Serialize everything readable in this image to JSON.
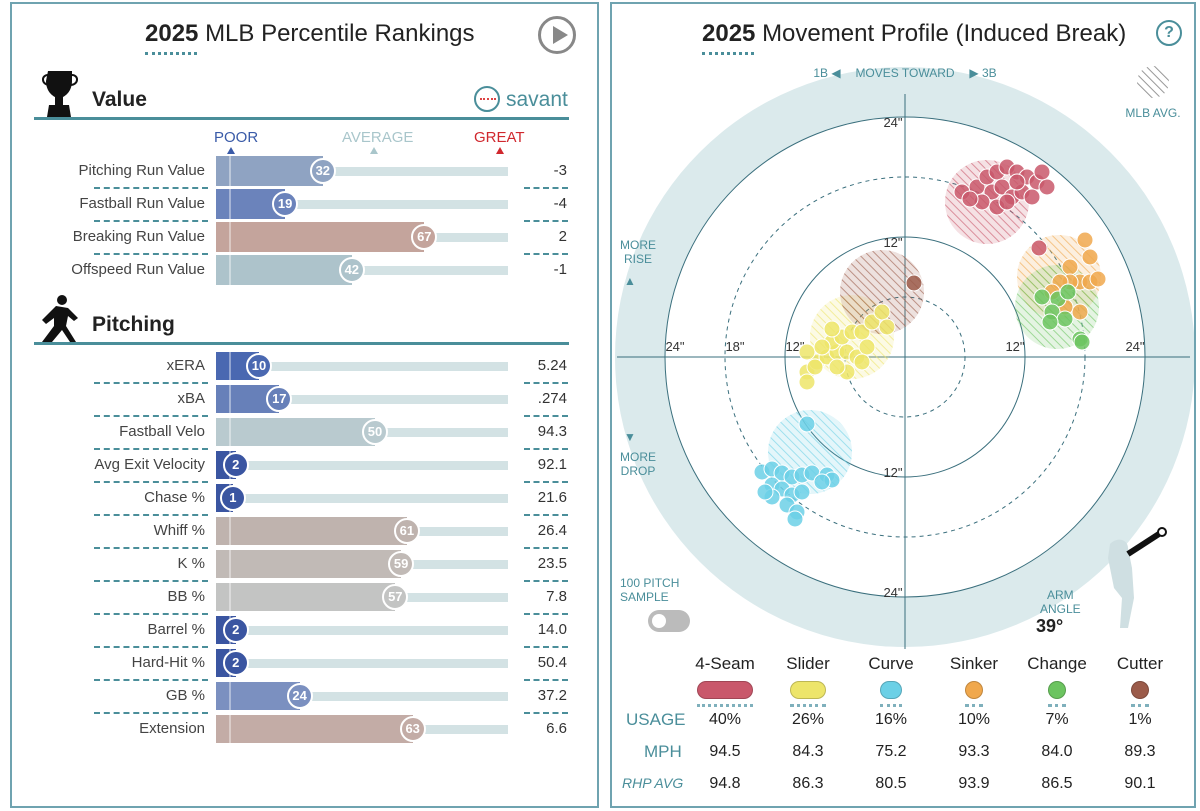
{
  "left": {
    "title_year": "2025",
    "title_rest": "MLB Percentile Rankings",
    "play_icon": "play-circle-icon",
    "value_section": {
      "icon": "trophy-icon",
      "label": "Value"
    },
    "brand": {
      "icon": "baseball-icon",
      "label": "savant"
    },
    "scale": {
      "poor": "POOR",
      "average": "AVERAGE",
      "great": "GREAT",
      "poor_color": "#3a5ba8",
      "average_color": "#a9c6cb",
      "great_color": "#d0282e"
    },
    "value_rows": [
      {
        "label": "Pitching Run Value",
        "pct": 32,
        "value": "-3",
        "color": "#8fa3c2"
      },
      {
        "label": "Fastball Run Value",
        "pct": 19,
        "value": "-4",
        "color": "#6b83bb"
      },
      {
        "label": "Breaking Run Value",
        "pct": 67,
        "value": "2",
        "color": "#c4a49c"
      },
      {
        "label": "Offspeed Run Value",
        "pct": 42,
        "value": "-1",
        "color": "#adc3cb"
      }
    ],
    "pitching_section": {
      "icon": "pitcher-icon",
      "label": "Pitching"
    },
    "pitching_rows": [
      {
        "label": "xERA",
        "pct": 10,
        "value": "5.24",
        "color": "#4a68b1"
      },
      {
        "label": "xBA",
        "pct": 17,
        "value": ".274",
        "color": "#6780b9"
      },
      {
        "label": "Fastball Velo",
        "pct": 50,
        "value": "94.3",
        "color": "#b9cacf"
      },
      {
        "label": "Avg Exit Velocity",
        "pct": 2,
        "value": "92.1",
        "color": "#3a55a1"
      },
      {
        "label": "Chase %",
        "pct": 1,
        "value": "21.6",
        "color": "#3a55a1"
      },
      {
        "label": "Whiff %",
        "pct": 61,
        "value": "26.4",
        "color": "#bfb3ae"
      },
      {
        "label": "K %",
        "pct": 59,
        "value": "23.5",
        "color": "#c1bab6"
      },
      {
        "label": "BB %",
        "pct": 57,
        "value": "7.8",
        "color": "#c3c4c3"
      },
      {
        "label": "Barrel %",
        "pct": 2,
        "value": "14.0",
        "color": "#3a55a1"
      },
      {
        "label": "Hard-Hit %",
        "pct": 2,
        "value": "50.4",
        "color": "#3a55a1"
      },
      {
        "label": "GB %",
        "pct": 24,
        "value": "37.2",
        "color": "#7b90c0"
      },
      {
        "label": "Extension",
        "pct": 63,
        "value": "6.6",
        "color": "#c3aca6"
      }
    ]
  },
  "right": {
    "title_year": "2025",
    "title_rest": "Movement Profile (Induced Break)",
    "help_icon": "question-circle-icon",
    "direction": {
      "left": "1B",
      "mid": "MOVES TOWARD",
      "right": "3B"
    },
    "mlb_avg_label": "MLB AVG.",
    "more_rise": [
      "MORE",
      "RISE"
    ],
    "more_drop": [
      "MORE",
      "DROP"
    ],
    "sample_label": [
      "100 PITCH",
      "SAMPLE"
    ],
    "sample_toggle_on": false,
    "arm_angle_label": [
      "ARM",
      "ANGLE"
    ],
    "arm_angle": "39°",
    "row_labels": {
      "usage": "USAGE",
      "mph": "MPH",
      "rhp": "RHP AVG"
    },
    "pitches": [
      {
        "name": "4-Seam",
        "color": "#c9586b",
        "usage": "40%",
        "mph": "94.5",
        "rhp": "94.8"
      },
      {
        "name": "Slider",
        "color": "#ede56a",
        "usage": "26%",
        "mph": "84.3",
        "rhp": "86.3"
      },
      {
        "name": "Curve",
        "color": "#6cd0e6",
        "usage": "16%",
        "mph": "75.2",
        "rhp": "80.5"
      },
      {
        "name": "Sinker",
        "color": "#f0a84d",
        "usage": "10%",
        "mph": "93.3",
        "rhp": "93.9"
      },
      {
        "name": "Change",
        "color": "#6cc460",
        "usage": "7%",
        "mph": "84.0",
        "rhp": "86.5"
      },
      {
        "name": "Cutter",
        "color": "#9b5b4a",
        "usage": "1%",
        "mph": "89.3",
        "rhp": "90.1"
      }
    ]
  },
  "chart_data": {
    "type": "scatter",
    "x_unit": "inches horizontal break",
    "y_unit": "inches induced vertical break",
    "xlim": [
      -29,
      29
    ],
    "ylim": [
      -29,
      29
    ],
    "ring_labels": [
      "12\"",
      "18\"",
      "24\""
    ],
    "series": [
      {
        "name": "4-Seam",
        "color": "#c9586b",
        "mlb_avg": [
          8.2,
          15.5
        ],
        "points": [
          [
            5.7,
            16.5
          ],
          [
            7.2,
            17
          ],
          [
            8.2,
            18
          ],
          [
            9.2,
            18.5
          ],
          [
            10.2,
            19
          ],
          [
            11.2,
            18.5
          ],
          [
            12.2,
            18
          ],
          [
            13.2,
            17.5
          ],
          [
            14.2,
            17
          ],
          [
            8.7,
            16.5
          ],
          [
            9.7,
            17
          ],
          [
            10.7,
            16
          ],
          [
            11.7,
            16.5
          ],
          [
            7.7,
            15.5
          ],
          [
            9.2,
            15
          ],
          [
            12.7,
            16
          ],
          [
            11.2,
            17.5
          ],
          [
            13.7,
            18.5
          ],
          [
            13.4,
            10.9
          ],
          [
            10.2,
            15.5
          ],
          [
            6.5,
            15.8
          ]
        ]
      },
      {
        "name": "Slider",
        "color": "#ede56a",
        "mlb_avg": [
          -5.3,
          2
        ],
        "points": [
          [
            -9.8,
            -1.5
          ],
          [
            -9.8,
            -2.5
          ],
          [
            -8.8,
            -0.5
          ],
          [
            -7.8,
            0
          ],
          [
            -6.8,
            0.5
          ],
          [
            -5.8,
            0.5
          ],
          [
            -4.8,
            0
          ],
          [
            -7.3,
            1.5
          ],
          [
            -6.3,
            2
          ],
          [
            -5.3,
            2.5
          ],
          [
            -4.3,
            2.5
          ],
          [
            -3.3,
            3.5
          ],
          [
            -2.3,
            4.5
          ],
          [
            -1.8,
            3
          ],
          [
            -3.8,
            1
          ],
          [
            -9.8,
            0.5
          ],
          [
            -8.3,
            1
          ],
          [
            -5.8,
            -1.5
          ],
          [
            -6.8,
            -1
          ],
          [
            -4.3,
            -0.5
          ],
          [
            -7.3,
            2.8
          ],
          [
            -9,
            -1
          ]
        ]
      },
      {
        "name": "Curve",
        "color": "#6cd0e6",
        "mlb_avg": [
          -9.5,
          -9.5
        ],
        "points": [
          [
            -9.8,
            -6.7
          ],
          [
            -14.3,
            -11.5
          ],
          [
            -13.3,
            -11.2
          ],
          [
            -12.3,
            -11.6
          ],
          [
            -11.3,
            -12
          ],
          [
            -10.3,
            -11.8
          ],
          [
            -9.3,
            -11.6
          ],
          [
            -7.8,
            -11.8
          ],
          [
            -7.3,
            -12.3
          ],
          [
            -13.3,
            -12.8
          ],
          [
            -12.3,
            -13.2
          ],
          [
            -11.3,
            -13.8
          ],
          [
            -10.3,
            -13.5
          ],
          [
            -13.3,
            -14
          ],
          [
            -11.8,
            -14.8
          ],
          [
            -10.8,
            -15.5
          ],
          [
            -11,
            -16.2
          ],
          [
            -14,
            -13.5
          ],
          [
            -8.3,
            -12.5
          ]
        ]
      },
      {
        "name": "Sinker",
        "color": "#f0a84d",
        "mlb_avg": [
          15.4,
          8
        ],
        "points": [
          [
            18,
            11.7
          ],
          [
            16.5,
            9
          ],
          [
            18.5,
            10
          ],
          [
            17.5,
            7.5
          ],
          [
            16.5,
            7.5
          ],
          [
            15.5,
            7.5
          ],
          [
            18.5,
            7.5
          ],
          [
            19.3,
            7.8
          ],
          [
            14.7,
            6.5
          ],
          [
            17.5,
            4.5
          ],
          [
            16,
            5
          ]
        ]
      },
      {
        "name": "Change",
        "color": "#6cc460",
        "mlb_avg": [
          15.2,
          5
        ],
        "points": [
          [
            13.7,
            6
          ],
          [
            15.3,
            5.8
          ],
          [
            16.3,
            6.5
          ],
          [
            14.7,
            4.5
          ],
          [
            16,
            3.8
          ],
          [
            17.5,
            1.8
          ],
          [
            17.7,
            1.5
          ],
          [
            14.5,
            3.5
          ]
        ]
      },
      {
        "name": "Cutter",
        "color": "#9b5b4a",
        "mlb_avg": [
          -2.3,
          6.5
        ],
        "points": [
          [
            0.9,
            7.4
          ]
        ]
      }
    ]
  }
}
